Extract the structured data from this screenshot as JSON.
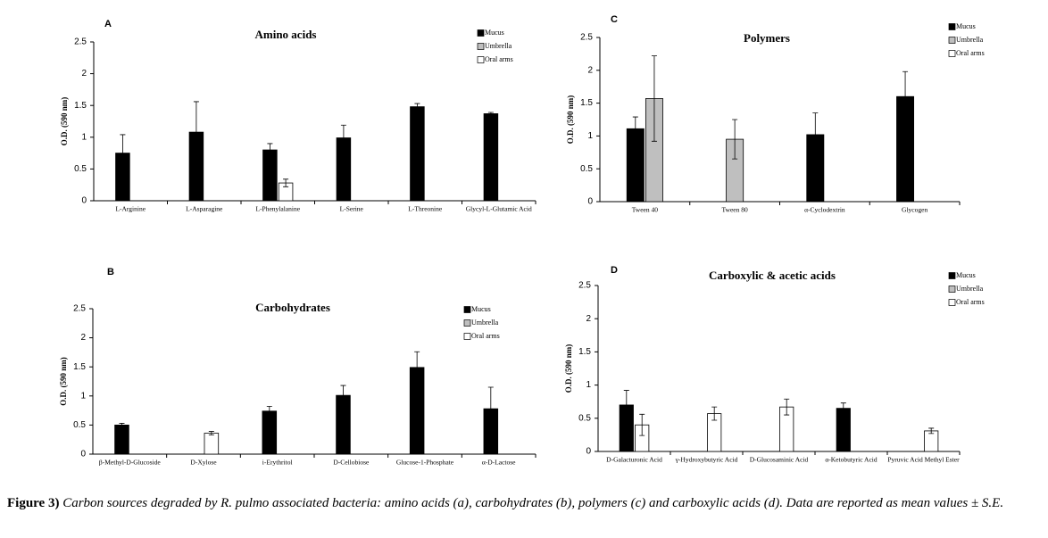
{
  "chart_data": [
    {
      "type": "bar",
      "panel": "A",
      "title": "Amino acids",
      "y_label": "O.D. (590 nm)",
      "categories": [
        "L-Arginine",
        "L-Asparagine",
        "L-Phenylalanine",
        "L-Serine",
        "L-Threonine",
        "Glycyl-L-Glutamic Acid"
      ],
      "series": [
        {
          "name": "Mucus",
          "color": "#000000",
          "values": [
            0.75,
            1.08,
            0.8,
            0.99,
            1.48,
            1.37
          ],
          "errors": [
            0.29,
            0.48,
            0.1,
            0.2,
            0.05,
            0.02
          ]
        },
        {
          "name": "Umbrella",
          "color": "#bfbfbf",
          "values": [
            null,
            null,
            null,
            null,
            null,
            null
          ],
          "errors": [
            null,
            null,
            null,
            null,
            null,
            null
          ]
        },
        {
          "name": "Oral arms",
          "color": "#ffffff",
          "values": [
            null,
            null,
            0.28,
            null,
            null,
            null
          ],
          "errors": [
            null,
            null,
            0.06,
            null,
            null,
            null
          ]
        }
      ],
      "ylim": [
        0,
        2.5
      ],
      "yticks": [
        0,
        0.5,
        1,
        1.5,
        2,
        2.5
      ]
    },
    {
      "type": "bar",
      "panel": "B",
      "title": "Carbohydrates",
      "y_label": "O.D. (590 nm)",
      "categories": [
        "β-Methyl-D-Glucoside",
        "D-Xylose",
        "i-Erythritol",
        "D-Cellobiose",
        "Glucose-1-Phosphate",
        "α-D-Lactose"
      ],
      "series": [
        {
          "name": "Mucus",
          "color": "#000000",
          "values": [
            0.5,
            null,
            0.74,
            1.01,
            1.49,
            0.78
          ],
          "errors": [
            0.03,
            null,
            0.08,
            0.17,
            0.27,
            0.37
          ]
        },
        {
          "name": "Umbrella",
          "color": "#bfbfbf",
          "values": [
            null,
            null,
            null,
            null,
            null,
            null
          ],
          "errors": [
            null,
            null,
            null,
            null,
            null,
            null
          ]
        },
        {
          "name": "Oral arms",
          "color": "#ffffff",
          "values": [
            null,
            0.36,
            null,
            null,
            null,
            null
          ],
          "errors": [
            null,
            0.03,
            null,
            null,
            null,
            null
          ]
        }
      ],
      "ylim": [
        0,
        2.5
      ],
      "yticks": [
        0,
        0.5,
        1,
        1.5,
        2,
        2.5
      ]
    },
    {
      "type": "bar",
      "panel": "C",
      "title": "Polymers",
      "y_label": "O.D. (590 nm)",
      "categories": [
        "Tween 40",
        "Tween 80",
        "α-Cyclodextrin",
        "Glycogen"
      ],
      "series": [
        {
          "name": "Mucus",
          "color": "#000000",
          "values": [
            1.11,
            null,
            1.02,
            1.6
          ],
          "errors": [
            0.18,
            null,
            0.33,
            0.38
          ]
        },
        {
          "name": "Umbrella",
          "color": "#bfbfbf",
          "values": [
            1.57,
            0.95,
            null,
            null
          ],
          "errors": [
            0.65,
            0.3,
            null,
            null
          ]
        },
        {
          "name": "Oral arms",
          "color": "#ffffff",
          "values": [
            null,
            null,
            null,
            null
          ],
          "errors": [
            null,
            null,
            null,
            null
          ]
        }
      ],
      "ylim": [
        0,
        2.5
      ],
      "yticks": [
        0,
        0.5,
        1,
        1.5,
        2,
        2.5
      ]
    },
    {
      "type": "bar",
      "panel": "D",
      "title": "Carboxylic & acetic acids",
      "y_label": "O.D. (590 nm)",
      "categories": [
        "D-Galacturonic Acid",
        "γ-Hydroxybutyric Acid",
        "D-Glucosaminic Acid",
        "α-Ketobutyric Acid",
        "Pyruvic Acid Methyl Ester"
      ],
      "series": [
        {
          "name": "Mucus",
          "color": "#000000",
          "values": [
            0.7,
            null,
            null,
            0.65,
            null
          ],
          "errors": [
            0.22,
            null,
            null,
            0.08,
            null
          ]
        },
        {
          "name": "Umbrella",
          "color": "#bfbfbf",
          "values": [
            null,
            null,
            null,
            null,
            null
          ],
          "errors": [
            null,
            null,
            null,
            null,
            null
          ]
        },
        {
          "name": "Oral arms",
          "color": "#ffffff",
          "values": [
            0.4,
            0.57,
            0.67,
            null,
            0.31
          ],
          "errors": [
            0.16,
            0.1,
            0.12,
            null,
            0.04
          ]
        }
      ],
      "ylim": [
        0,
        2.5
      ],
      "yticks": [
        0,
        0.5,
        1,
        1.5,
        2,
        2.5
      ]
    }
  ],
  "caption": {
    "label": "Figure 3)",
    "text": "Carbon sources degraded by R. pulmo associated bacteria: amino acids (a), carbohydrates (b), polymers (c) and carboxylic acids (d). Data are reported as mean values ± S.E."
  }
}
